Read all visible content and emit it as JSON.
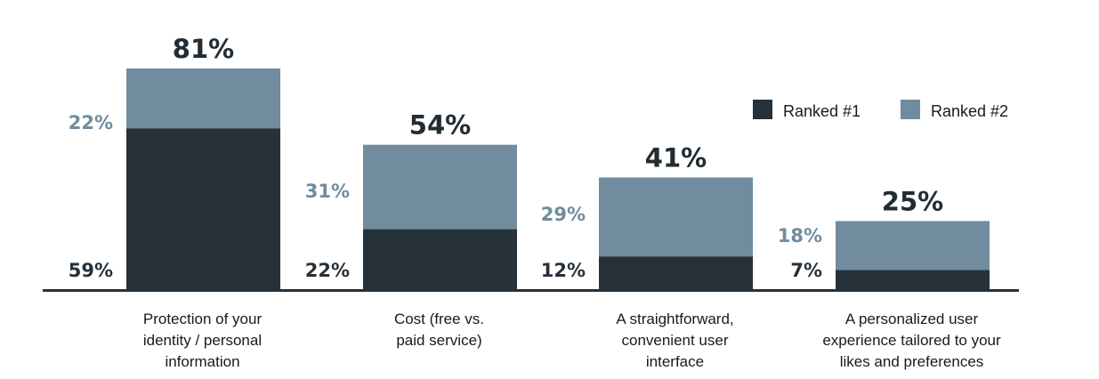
{
  "chart_data": {
    "type": "bar",
    "stacked": true,
    "categories": [
      [
        "Protection of your",
        "identity / personal",
        "information"
      ],
      [
        "Cost (free vs.",
        "paid service)"
      ],
      [
        "A straightforward,",
        "convenient user",
        "interface"
      ],
      [
        "A personalized user",
        "experience tailored to your",
        "likes and preferences"
      ]
    ],
    "series": [
      {
        "name": "Ranked #1",
        "color": "#26313a",
        "values": [
          59,
          22,
          12,
          7
        ],
        "labels": [
          "59%",
          "22%",
          "12%",
          "7%"
        ]
      },
      {
        "name": "Ranked #2",
        "color": "#708c9e",
        "values": [
          22,
          31,
          29,
          18
        ],
        "labels": [
          "22%",
          "31%",
          "29%",
          "18%"
        ]
      }
    ],
    "totals": [
      81,
      54,
      41,
      25
    ],
    "total_labels": [
      "81%",
      "54%",
      "41%",
      "25%"
    ],
    "ylim": [
      0,
      81
    ],
    "grid": false,
    "legend_position": "top-right",
    "label_colors": {
      "ranked1": "#26313a",
      "ranked2": "#708c9e",
      "total": "#222c33"
    }
  }
}
